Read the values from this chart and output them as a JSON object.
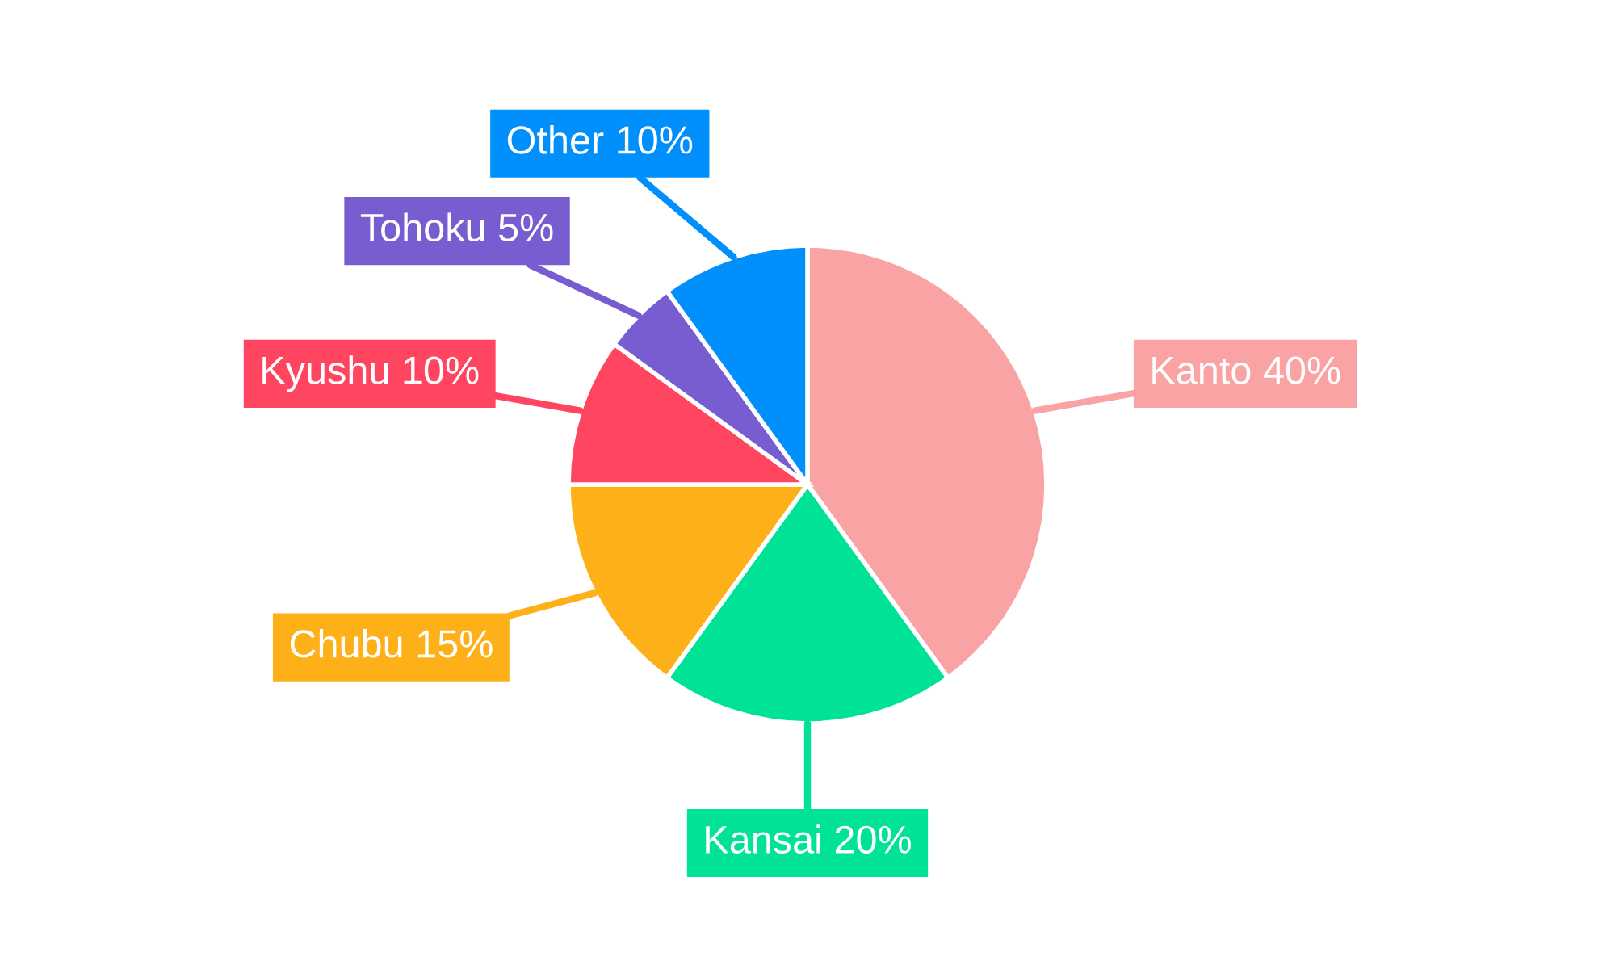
{
  "chart_data": {
    "type": "pie",
    "categories": [
      "Kanto",
      "Kansai",
      "Chubu",
      "Kyushu",
      "Tohoku",
      "Other"
    ],
    "values": [
      40,
      20,
      15,
      10,
      5,
      10
    ],
    "value_labels": [
      "40%",
      "20%",
      "15%",
      "10%",
      "5%",
      "10%"
    ],
    "colors": [
      "#f9a3a4",
      "#00e396",
      "#feb019",
      "#ff4560",
      "#775dd0",
      "#008ffb"
    ]
  }
}
